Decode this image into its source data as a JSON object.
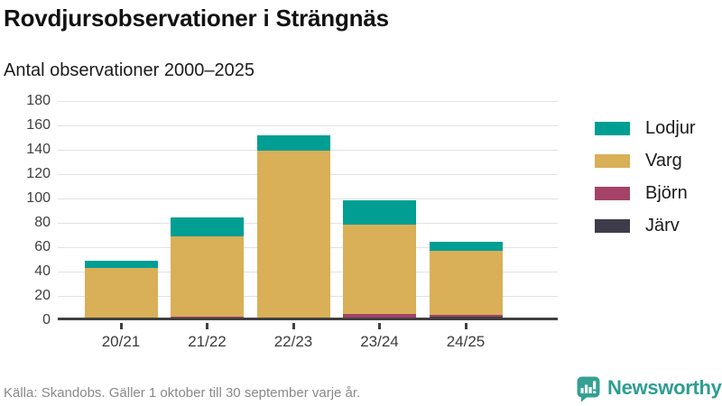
{
  "header": {
    "title": "Rovdjursobservationer i Strängnäs",
    "subtitle": "Antal observationer 2000–2025"
  },
  "chart_data": {
    "type": "bar",
    "stacked": true,
    "title": "Rovdjursobservationer i Strängnäs",
    "subtitle": "Antal observationer 2000–2025",
    "categories": [
      "20/21",
      "21/22",
      "22/23",
      "23/24",
      "24/25"
    ],
    "series": [
      {
        "name": "Lodjur",
        "color": "#009e93",
        "values": [
          6,
          15,
          13,
          20,
          7
        ]
      },
      {
        "name": "Varg",
        "color": "#d9af58",
        "values": [
          41,
          66,
          137,
          73,
          53
        ]
      },
      {
        "name": "Björn",
        "color": "#a54366",
        "values": [
          0,
          1,
          0,
          3,
          1
        ]
      },
      {
        "name": "Järv",
        "color": "#3e3c4a",
        "values": [
          0,
          0,
          0,
          0,
          1
        ]
      }
    ],
    "totals": [
      47,
      82,
      150,
      96,
      62
    ],
    "ylim": [
      0,
      180
    ],
    "y_ticks": [
      0,
      20,
      40,
      60,
      80,
      100,
      120,
      140,
      160,
      180
    ],
    "grid": true,
    "legend_position": "right",
    "xlabel": "",
    "ylabel": ""
  },
  "footer": {
    "source": "Källa: Skandobs. Gäller 1 oktober till 30 september varje år.",
    "brand": "Newsworthy"
  },
  "colors": {
    "axis": "#404040",
    "grid": "#e2e2e2",
    "brand_teal": "#2f9d92"
  }
}
